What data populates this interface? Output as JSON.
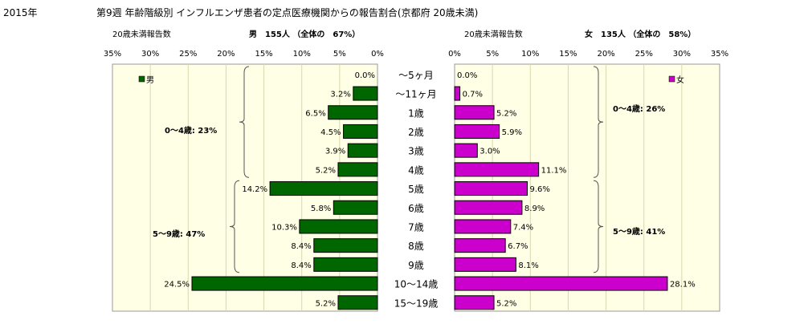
{
  "header": {
    "year": "2015年",
    "title": "第9週 年齢階級別 インフルエンザ患者の定点医療機関からの報告割合(京都府 20歳未満)"
  },
  "chart_data": [
    {
      "type": "bar",
      "orientation": "horizontal",
      "side": "left",
      "sub_label": "20歳未満報告数",
      "summary": "男　155人 （全体の　67%）",
      "legend": "男",
      "color": "#006600",
      "ylim": [
        0,
        35
      ],
      "ticks": [
        "35%",
        "30%",
        "25%",
        "20%",
        "15%",
        "10%",
        "5%",
        "0%"
      ],
      "categories": [
        "～5ヶ月",
        "～11ヶ月",
        "1歳",
        "2歳",
        "3歳",
        "4歳",
        "5歳",
        "6歳",
        "7歳",
        "8歳",
        "9歳",
        "10～14歳",
        "15～19歳"
      ],
      "values": [
        0.0,
        3.2,
        6.5,
        4.5,
        3.9,
        5.2,
        14.2,
        5.8,
        10.3,
        8.4,
        8.4,
        24.5,
        5.2
      ],
      "labels": [
        "0.0%",
        "3.2%",
        "6.5%",
        "4.5%",
        "3.9%",
        "5.2%",
        "14.2%",
        "5.8%",
        "10.3%",
        "8.4%",
        "8.4%",
        "24.5%",
        "5.2%"
      ],
      "group_labels": [
        "0～4歳: 23%",
        "5～9歳: 47%"
      ]
    },
    {
      "type": "bar",
      "orientation": "horizontal",
      "side": "right",
      "sub_label": "20歳未満報告数",
      "summary": "女　135人 （全体の　58%）",
      "legend": "女",
      "color": "#cc00cc",
      "ylim": [
        0,
        35
      ],
      "ticks": [
        "0%",
        "5%",
        "10%",
        "15%",
        "20%",
        "25%",
        "30%",
        "35%"
      ],
      "categories": [
        "～5ヶ月",
        "～11ヶ月",
        "1歳",
        "2歳",
        "3歳",
        "4歳",
        "5歳",
        "6歳",
        "7歳",
        "8歳",
        "9歳",
        "10～14歳",
        "15～19歳"
      ],
      "values": [
        0.0,
        0.7,
        5.2,
        5.9,
        3.0,
        11.1,
        9.6,
        8.9,
        7.4,
        6.7,
        8.1,
        28.1,
        5.2
      ],
      "labels": [
        "0.0%",
        "0.7%",
        "5.2%",
        "5.9%",
        "3.0%",
        "11.1%",
        "9.6%",
        "8.9%",
        "7.4%",
        "6.7%",
        "8.1%",
        "28.1%",
        "5.2%"
      ],
      "group_labels": [
        "0～4歳: 26%",
        "5～9歳: 41%"
      ]
    }
  ]
}
